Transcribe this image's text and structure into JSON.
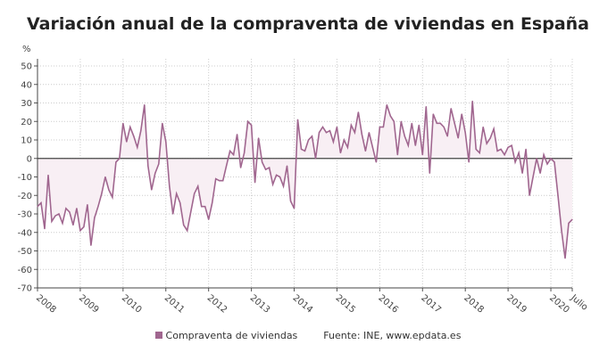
{
  "chart_data": {
    "type": "line",
    "title": "Variación anual de la compraventa de viviendas en España",
    "ylabel": "%",
    "ylim": [
      -70,
      50
    ],
    "yticks": [
      50,
      40,
      30,
      20,
      10,
      0,
      -10,
      -20,
      -30,
      -40,
      -50,
      -60,
      -70
    ],
    "xtick_labels": [
      "2008",
      "2009",
      "2010",
      "2011",
      "2012",
      "2013",
      "2014",
      "2015",
      "2016",
      "2017",
      "2018",
      "2019",
      "2020",
      "Julio"
    ],
    "x_start": "2008-01",
    "x_end": "2020-07",
    "frequency": "monthly",
    "grid": true,
    "legend_position": "bottom",
    "series": [
      {
        "name": "Compraventa de viviendas",
        "color": "#a0668f",
        "fill_color": "#f8eff4",
        "values": [
          -26,
          -24,
          -38,
          -9,
          -34,
          -31,
          -30,
          -35,
          -27,
          -29,
          -36,
          -27,
          -39,
          -37,
          -25,
          -47,
          -32,
          -26,
          -19,
          -10,
          -17,
          -21,
          -2,
          0,
          19,
          9,
          17,
          12,
          6,
          15,
          29,
          -4,
          -17,
          -8,
          -3,
          19,
          9,
          -15,
          -30,
          -19,
          -24,
          -36,
          -39,
          -29,
          -19,
          -15,
          -26,
          -26,
          -33,
          -24,
          -11,
          -12,
          -12,
          -4,
          4,
          2,
          13,
          -5,
          3,
          20,
          18,
          -13,
          11,
          -2,
          -6,
          -5,
          -14,
          -9,
          -10,
          -15,
          -4,
          -23,
          -27,
          21,
          5,
          4,
          10,
          12,
          0,
          14,
          17,
          14,
          15,
          9,
          17,
          3,
          10,
          6,
          18,
          14,
          25,
          13,
          4,
          14,
          6,
          -2,
          17,
          17,
          29,
          23,
          20,
          2,
          20,
          12,
          7,
          19,
          7,
          18,
          2,
          28,
          -8,
          24,
          19,
          19,
          17,
          12,
          27,
          19,
          11,
          24,
          14,
          -2,
          31,
          5,
          3,
          17,
          8,
          11,
          16,
          4,
          5,
          2,
          6,
          7,
          -2,
          3,
          -8,
          5,
          -20,
          -10,
          0,
          -8,
          2,
          -3,
          0,
          -2,
          -20,
          -39,
          -54,
          -35,
          -33
        ]
      }
    ],
    "source": "Fuente: INE, www.epdata.es"
  }
}
